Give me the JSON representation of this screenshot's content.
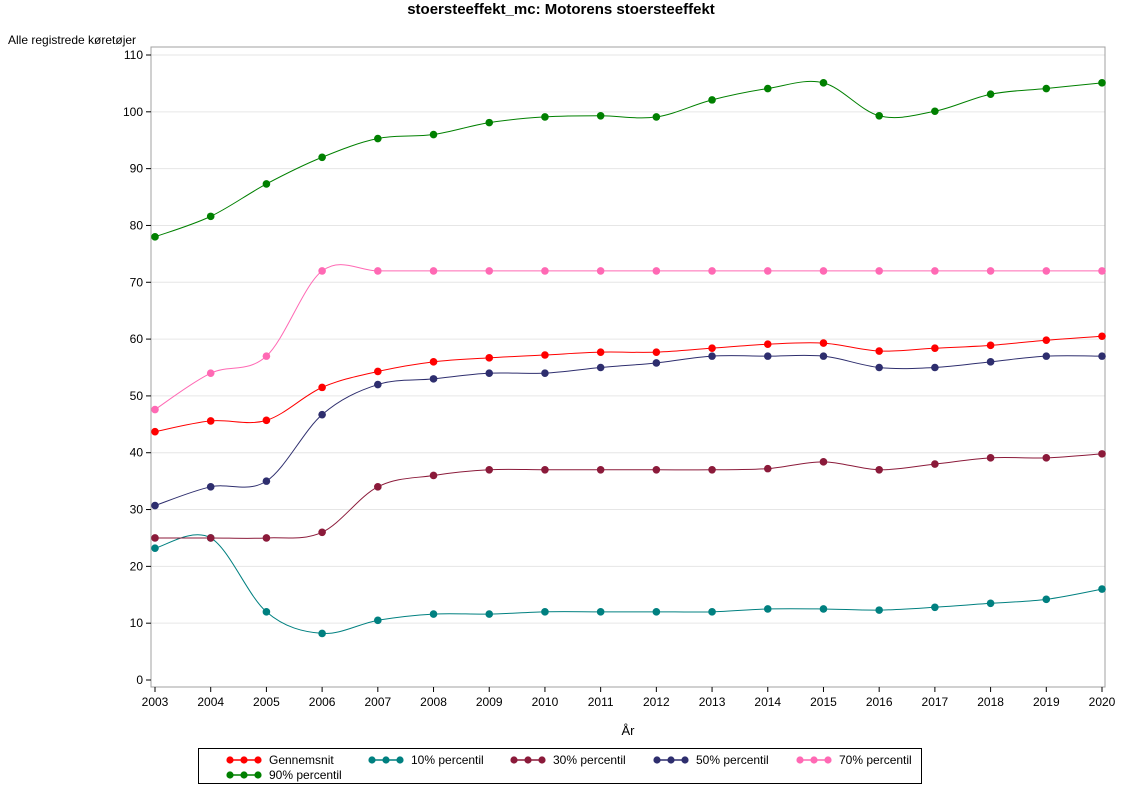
{
  "chart_data": {
    "type": "line",
    "title": "stoersteeffekt_mc: Motorens stoersteeffekt",
    "ylabel": "Alle registrede køretøjer",
    "xlabel": "År",
    "x": [
      2003,
      2004,
      2005,
      2006,
      2007,
      2008,
      2009,
      2010,
      2011,
      2012,
      2013,
      2014,
      2015,
      2016,
      2017,
      2018,
      2019,
      2020
    ],
    "xlim": [
      2003,
      2020
    ],
    "ylim": [
      0,
      110
    ],
    "yticks": [
      0,
      10,
      20,
      30,
      40,
      50,
      60,
      70,
      80,
      90,
      100,
      110
    ],
    "grid": true,
    "legend_position": "bottom",
    "series": [
      {
        "name": "Gennemsnit",
        "color": "#ff0000",
        "values": [
          43.7,
          45.6,
          45.7,
          51.5,
          54.3,
          56.0,
          56.7,
          57.2,
          57.7,
          57.7,
          58.4,
          59.1,
          59.3,
          57.9,
          58.4,
          58.9,
          59.8,
          60.5
        ]
      },
      {
        "name": "10% percentil",
        "color": "#008080",
        "values": [
          23.2,
          25.0,
          12.0,
          8.2,
          10.5,
          11.6,
          11.6,
          12.0,
          12.0,
          12.0,
          12.0,
          12.5,
          12.5,
          12.3,
          12.8,
          13.5,
          14.2,
          16.0
        ]
      },
      {
        "name": "30% percentil",
        "color": "#8b1a3a",
        "values": [
          25.0,
          25.0,
          25.0,
          26.0,
          34.0,
          36.0,
          37.0,
          37.0,
          37.0,
          37.0,
          37.0,
          37.2,
          38.4,
          37.0,
          38.0,
          39.1,
          39.1,
          39.8
        ]
      },
      {
        "name": "50% percentil",
        "color": "#2e2e6e",
        "values": [
          30.7,
          34.0,
          35.0,
          46.7,
          52.0,
          53.0,
          54.0,
          54.0,
          55.0,
          55.8,
          57.0,
          57.0,
          57.0,
          55.0,
          55.0,
          56.0,
          57.0,
          57.0
        ]
      },
      {
        "name": "70% percentil",
        "color": "#ff69b4",
        "values": [
          47.6,
          54.0,
          57.0,
          72.0,
          72.0,
          72.0,
          72.0,
          72.0,
          72.0,
          72.0,
          72.0,
          72.0,
          72.0,
          72.0,
          72.0,
          72.0,
          72.0,
          72.0
        ]
      },
      {
        "name": "90% percentil",
        "color": "#008000",
        "values": [
          78.0,
          81.6,
          87.3,
          92.0,
          95.3,
          96.0,
          98.1,
          99.1,
          99.3,
          99.1,
          102.1,
          104.1,
          105.1,
          99.3,
          100.1,
          103.1,
          104.1,
          105.1
        ]
      }
    ]
  }
}
